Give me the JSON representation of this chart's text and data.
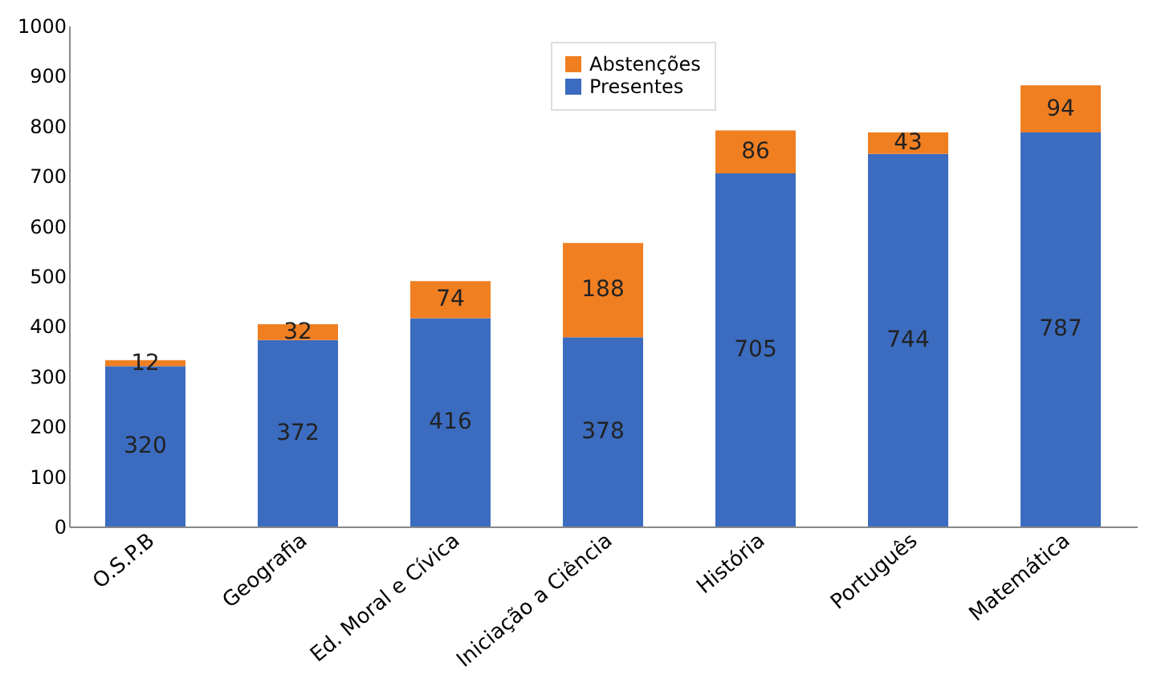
{
  "chart_data": {
    "type": "bar",
    "stacked": true,
    "categories": [
      "O.S.P.B",
      "Geografia",
      "Ed. Moral e Cívica",
      "Iniciação a Ciência",
      "História",
      "Português",
      "Matemática"
    ],
    "series": [
      {
        "name": "Presentes",
        "color": "#3b6cc0",
        "values": [
          320,
          372,
          416,
          378,
          705,
          744,
          787
        ]
      },
      {
        "name": "Abstenções",
        "color": "#f07f22",
        "values": [
          12,
          32,
          74,
          188,
          86,
          43,
          94
        ]
      }
    ],
    "ylim": [
      0,
      1000
    ],
    "yticks": [
      0,
      100,
      200,
      300,
      400,
      500,
      600,
      700,
      800,
      900,
      1000
    ],
    "grid": false,
    "legend": "top",
    "data_labels": true
  }
}
